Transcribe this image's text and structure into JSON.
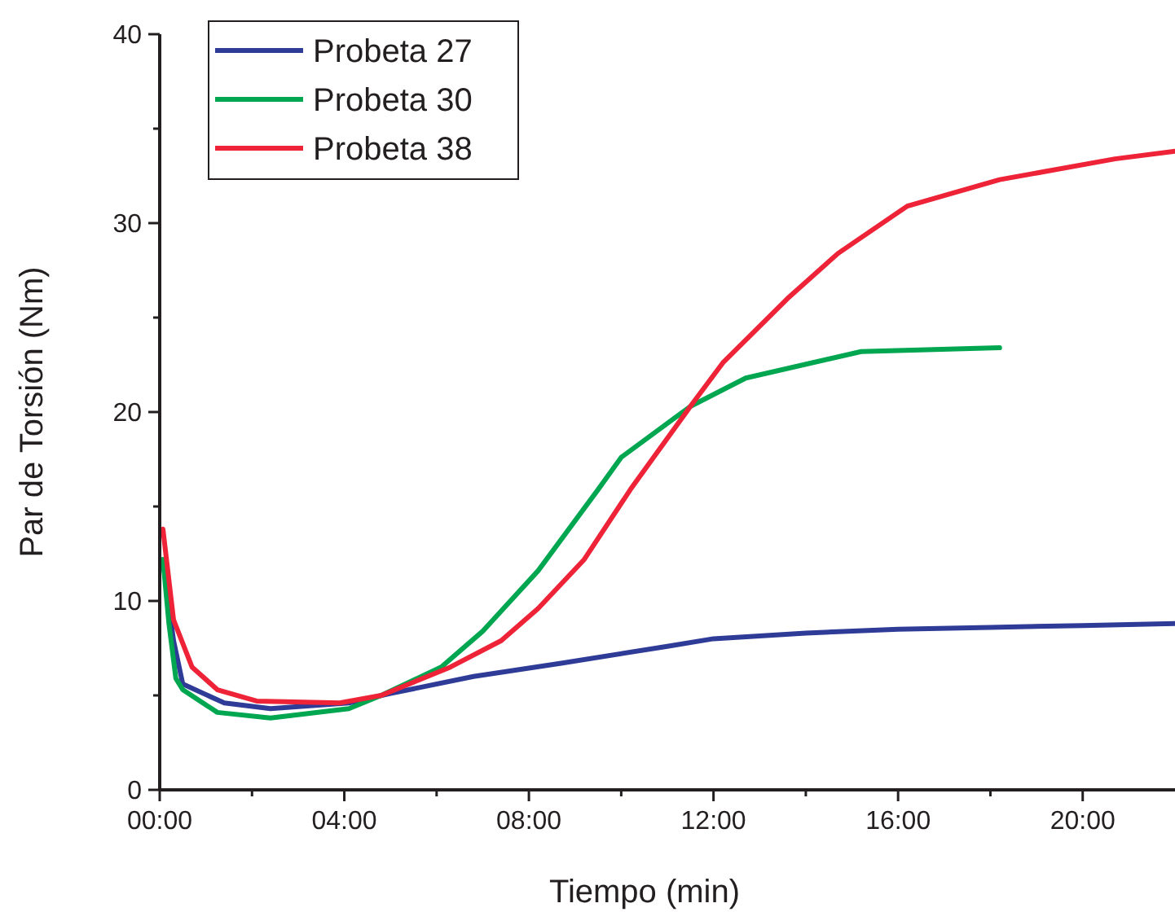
{
  "chart_data": {
    "type": "line",
    "xlabel": "Tiempo (min)",
    "ylabel": "Par de Torsión (Nm)",
    "xlim": [
      0,
      22
    ],
    "ylim": [
      0,
      40
    ],
    "xticks": [
      {
        "value": 0,
        "label": "00:00"
      },
      {
        "value": 2,
        "label": null
      },
      {
        "value": 4,
        "label": "04:00"
      },
      {
        "value": 6,
        "label": null
      },
      {
        "value": 8,
        "label": "08:00"
      },
      {
        "value": 10,
        "label": null
      },
      {
        "value": 12,
        "label": "12:00"
      },
      {
        "value": 14,
        "label": null
      },
      {
        "value": 16,
        "label": "16:00"
      },
      {
        "value": 18,
        "label": null
      },
      {
        "value": 20,
        "label": "20:00"
      }
    ],
    "yticks": [
      0,
      {
        "value": 5,
        "label": null
      },
      10,
      {
        "value": 15,
        "label": null
      },
      20,
      {
        "value": 25,
        "label": null
      },
      30,
      {
        "value": 35,
        "label": null
      },
      40
    ],
    "grid": false,
    "legend": "top left",
    "marker": "none",
    "line_style": "solid",
    "series": [
      {
        "name": "Probeta 27",
        "color": "#2e3b97",
        "x": [
          0.07,
          0.3,
          0.5,
          1.4,
          2.4,
          4.1,
          5.0,
          6.8,
          8.7,
          11.0,
          12,
          14,
          16,
          18,
          20,
          22
        ],
        "values": [
          12.1,
          7.9,
          5.6,
          4.6,
          4.3,
          4.6,
          5.1,
          6.0,
          6.7,
          7.6,
          8.0,
          8.3,
          8.5,
          8.6,
          8.7,
          8.8
        ]
      },
      {
        "name": "Probeta 30",
        "color": "#00a650",
        "x": [
          0.07,
          0.2,
          0.35,
          0.5,
          1.25,
          2.4,
          4.1,
          4.8,
          6.1,
          7.0,
          8.2,
          9.5,
          10,
          11.5,
          12.7,
          15.2,
          18.2
        ],
        "values": [
          12.2,
          8.8,
          5.9,
          5.3,
          4.1,
          3.8,
          4.3,
          5.0,
          6.5,
          8.4,
          11.6,
          15.9,
          17.6,
          20.3,
          21.8,
          23.2,
          23.4
        ]
      },
      {
        "name": "Probeta 38",
        "color": "#ee2337",
        "x": [
          0.07,
          0.3,
          0.7,
          1.25,
          2.1,
          3.9,
          4.8,
          6.3,
          7.4,
          8.2,
          9.2,
          10.2,
          11.5,
          12.2,
          13.6,
          14.7,
          16.2,
          18.2,
          20.7,
          22
        ],
        "values": [
          13.8,
          9.0,
          6.5,
          5.3,
          4.7,
          4.6,
          5.0,
          6.5,
          7.9,
          9.6,
          12.2,
          15.9,
          20.3,
          22.6,
          26.0,
          28.4,
          30.9,
          32.3,
          33.4,
          33.8
        ]
      }
    ]
  }
}
